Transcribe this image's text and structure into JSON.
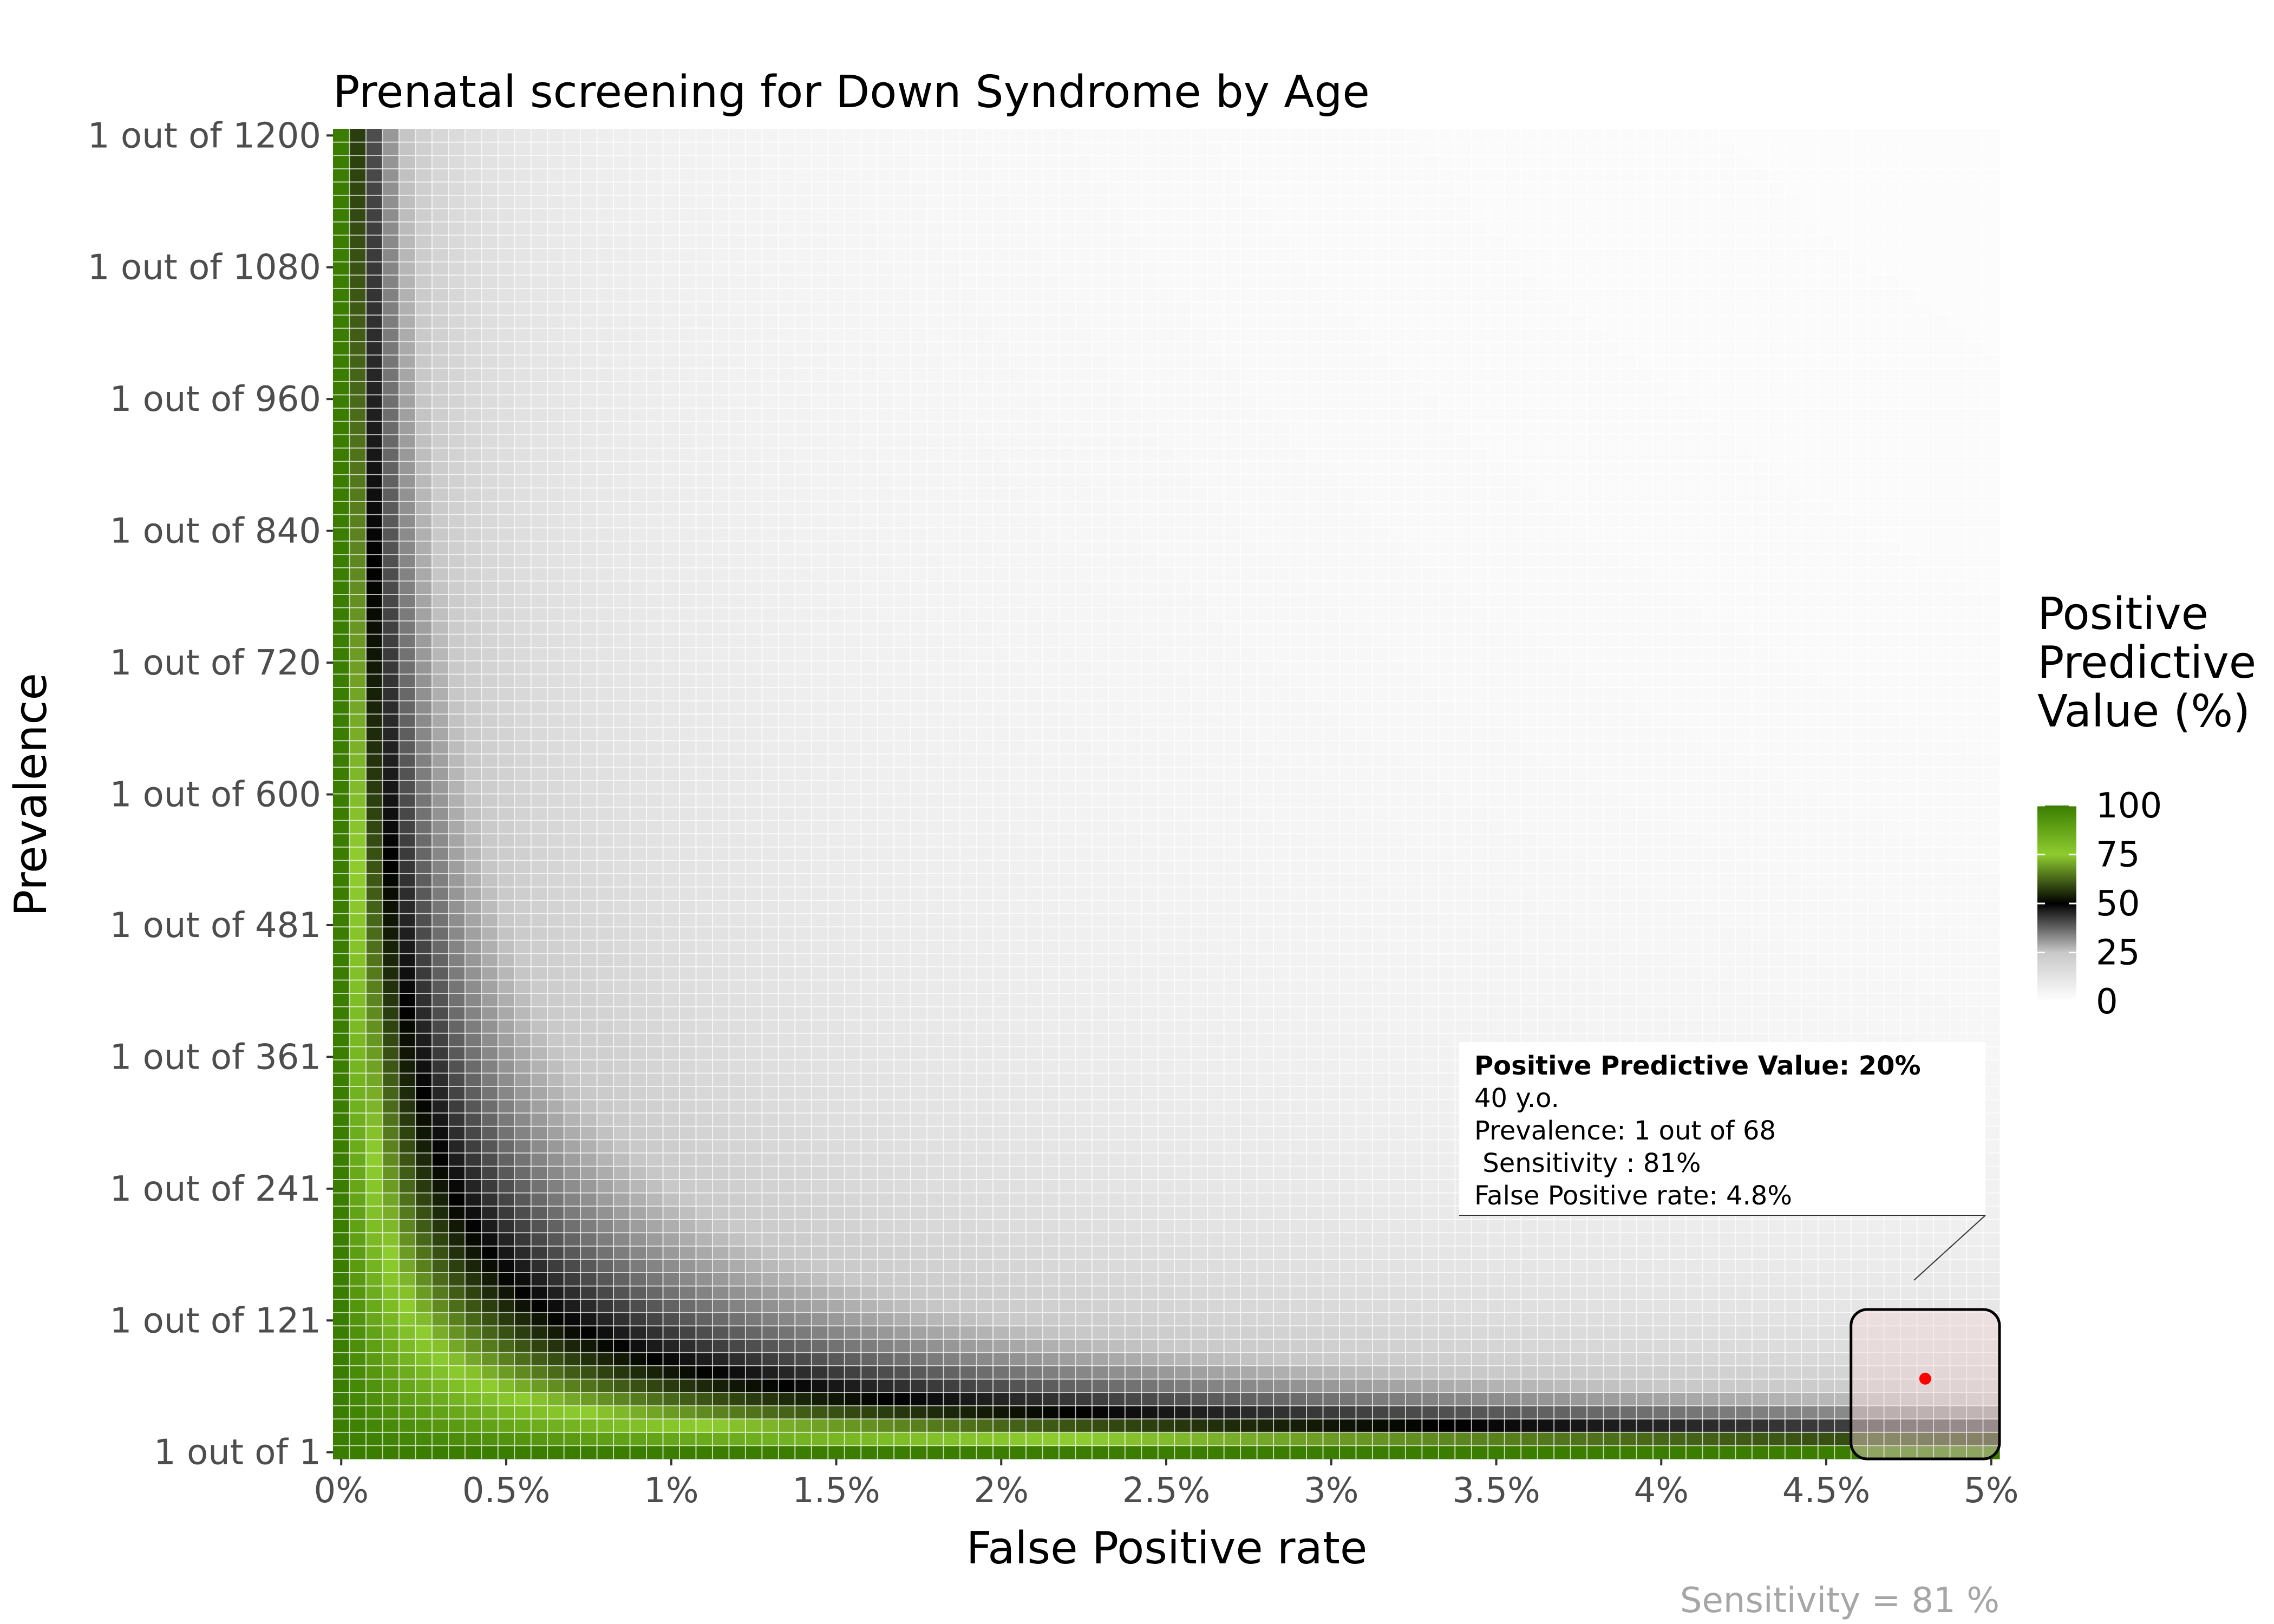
{
  "chart_data": {
    "type": "heatmap",
    "title": "Prenatal screening for Down Syndrome by Age",
    "xlabel": "False Positive rate",
    "ylabel": "Prevalence",
    "caption": "Sensitivity = 81 %",
    "sensitivity": 0.81,
    "x_range": [
      0,
      5
    ],
    "y_range": [
      1,
      1200
    ],
    "x_ticks": [
      {
        "value": 0,
        "label": "0%"
      },
      {
        "value": 0.5,
        "label": "0.5%"
      },
      {
        "value": 1,
        "label": "1%"
      },
      {
        "value": 1.5,
        "label": "1.5%"
      },
      {
        "value": 2,
        "label": "2%"
      },
      {
        "value": 2.5,
        "label": "2.5%"
      },
      {
        "value": 3,
        "label": "3%"
      },
      {
        "value": 3.5,
        "label": "3.5%"
      },
      {
        "value": 4,
        "label": "4%"
      },
      {
        "value": 4.5,
        "label": "4.5%"
      },
      {
        "value": 5,
        "label": "5%"
      }
    ],
    "y_ticks": [
      {
        "value": 1,
        "label": "1 out of 1"
      },
      {
        "value": 121,
        "label": "1 out of 121"
      },
      {
        "value": 241,
        "label": "1 out of 241"
      },
      {
        "value": 361,
        "label": "1 out of 361"
      },
      {
        "value": 481,
        "label": "1 out of 481"
      },
      {
        "value": 600,
        "label": "1 out of 600"
      },
      {
        "value": 720,
        "label": "1 out of 720"
      },
      {
        "value": 840,
        "label": "1 out of 840"
      },
      {
        "value": 960,
        "label": "1 out of 960"
      },
      {
        "value": 1080,
        "label": "1 out of 1080"
      },
      {
        "value": 1200,
        "label": "1 out of 1200"
      }
    ],
    "legend": {
      "title_lines": [
        "Positive",
        "Predictive",
        "Value (%)"
      ],
      "breaks": [
        100,
        75,
        50,
        25,
        0
      ],
      "placement": "right"
    },
    "color_scale": [
      {
        "value": 0,
        "color": "#ffffff"
      },
      {
        "value": 25,
        "color": "#c8c8c8"
      },
      {
        "value": 50,
        "color": "#000000"
      },
      {
        "value": 75,
        "color": "#8ecc2f"
      },
      {
        "value": 100,
        "color": "#3a7d00"
      }
    ],
    "highlight": {
      "age_label": "40 y.o.",
      "prevalence": 68,
      "false_positive_rate": 4.8,
      "ppv": 20,
      "point_color": "#ff0000",
      "box_x_range": [
        4.6,
        5.0
      ],
      "box_y_range": [
        1,
        131
      ]
    },
    "annotation_lines": [
      "Positive Predictive Value: 20%",
      "40 y.o.",
      "Prevalence: 1 out of 68",
      " Sensitivity : 81%",
      "False Positive rate: 4.8%"
    ]
  }
}
